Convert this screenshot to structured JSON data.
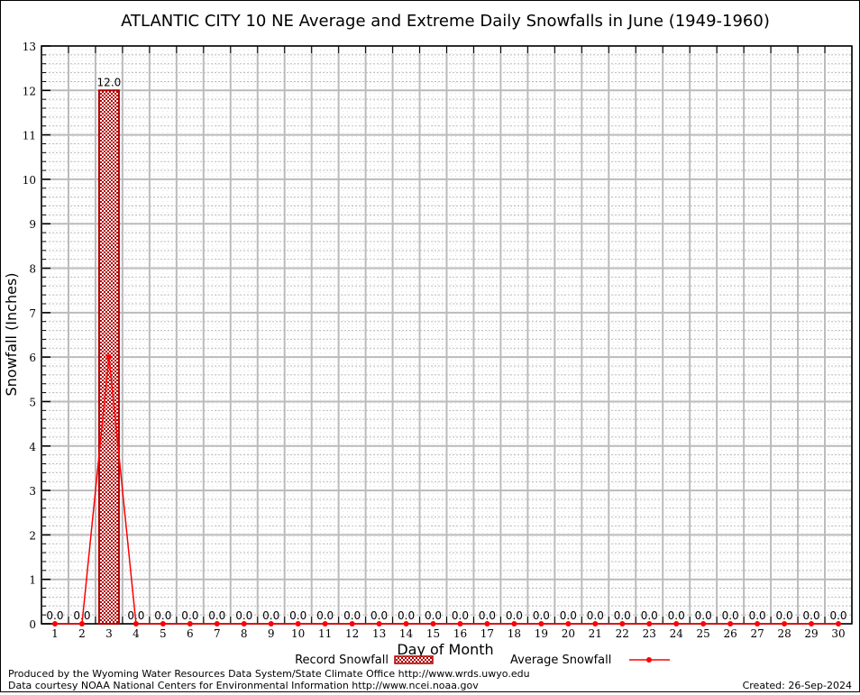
{
  "chart_data": {
    "type": "bar",
    "title": "ATLANTIC CITY 10 NE Average and Extreme Daily Snowfalls in June (1949-1960)",
    "xlabel": "Day of Month",
    "ylabel": "Snowfall (Inches)",
    "ylim": [
      0,
      13
    ],
    "yticks": [
      "0",
      "1",
      "2",
      "3",
      "4",
      "5",
      "6",
      "7",
      "8",
      "9",
      "10",
      "11",
      "12",
      "13"
    ],
    "categories": [
      "1",
      "2",
      "3",
      "4",
      "5",
      "6",
      "7",
      "8",
      "9",
      "10",
      "11",
      "12",
      "13",
      "14",
      "15",
      "16",
      "17",
      "18",
      "19",
      "20",
      "21",
      "22",
      "23",
      "24",
      "25",
      "26",
      "27",
      "28",
      "29",
      "30"
    ],
    "grid": true,
    "series": [
      {
        "name": "Record Snowfall",
        "type": "bar",
        "color": "#b00000",
        "values": [
          0,
          0,
          12.0,
          0,
          0,
          0,
          0,
          0,
          0,
          0,
          0,
          0,
          0,
          0,
          0,
          0,
          0,
          0,
          0,
          0,
          0,
          0,
          0,
          0,
          0,
          0,
          0,
          0,
          0,
          0
        ],
        "labels": [
          "0.0",
          "0.0",
          "12.0",
          "0.0",
          "0.0",
          "0.0",
          "0.0",
          "0.0",
          "0.0",
          "0.0",
          "0.0",
          "0.0",
          "0.0",
          "0.0",
          "0.0",
          "0.0",
          "0.0",
          "0.0",
          "0.0",
          "0.0",
          "0.0",
          "0.0",
          "0.0",
          "0.0",
          "0.0",
          "0.0",
          "0.0",
          "0.0",
          "0.0",
          "0.0"
        ]
      },
      {
        "name": "Average Snowfall",
        "type": "line",
        "color": "#ff0000",
        "values": [
          0,
          0,
          6.0,
          0,
          0,
          0,
          0,
          0,
          0,
          0,
          0,
          0,
          0,
          0,
          0,
          0,
          0,
          0,
          0,
          0,
          0,
          0,
          0,
          0,
          0,
          0,
          0,
          0,
          0,
          0
        ]
      }
    ],
    "legend": "bottom-center"
  },
  "footer": {
    "produced_by": "Produced by the Wyoming Water Resources Data System/State Climate Office http://www.wrds.uwyo.edu",
    "courtesy": "Data courtesy NOAA National Centers for Environmental Information http://www.ncei.noaa.gov",
    "created": "Created:  26-Sep-2024"
  }
}
